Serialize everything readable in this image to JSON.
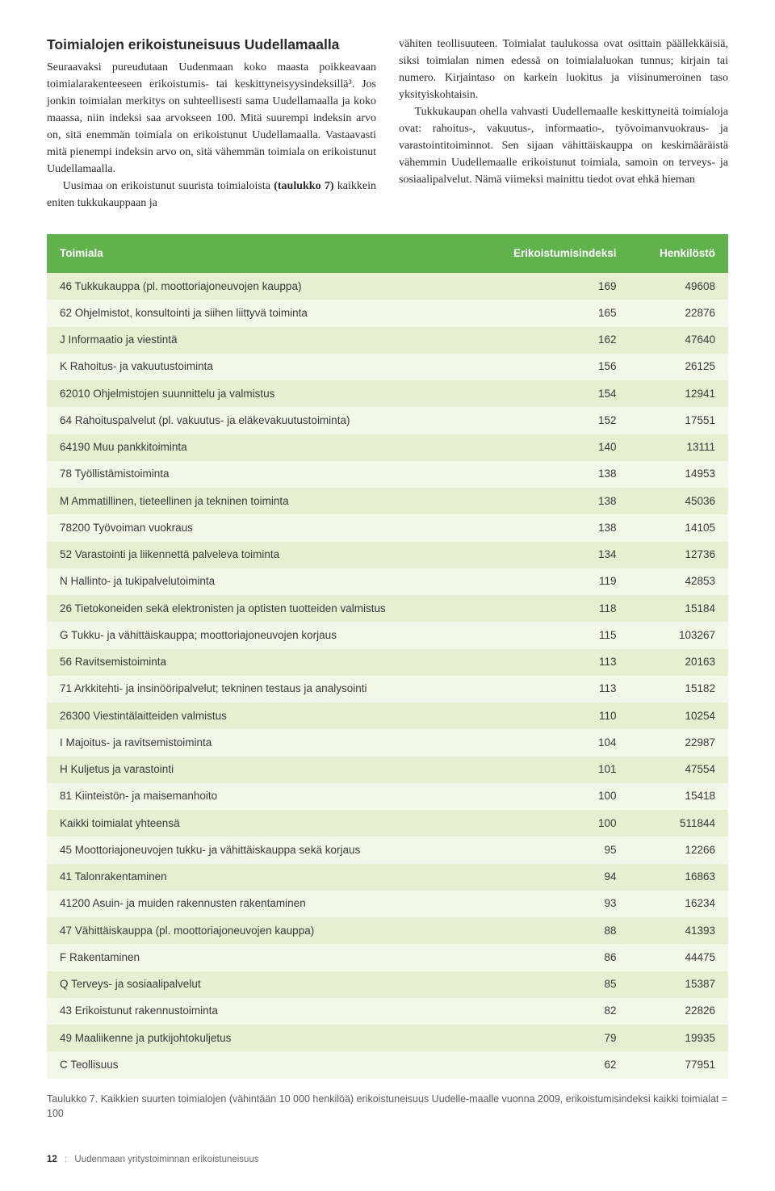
{
  "heading": "Toimialojen erikoistuneisuus Uudellamaalla",
  "left_paras": [
    "Seuraavaksi pureudutaan Uudenmaan koko maasta poikkeavaan toimialarakenteeseen erikoistumis- tai keskittyneisyysindeksillä³. Jos jonkin toimialan merkitys on suhteellisesti sama Uudellamaalla ja koko maassa, niin indeksi saa arvokseen 100. Mitä suurempi indeksin arvo on, sitä enemmän toimiala on erikoistunut Uudellamaalla. Vastaavasti mitä pienempi indeksin arvo on, sitä vähemmän toimiala on erikoistunut Uudellamaalla.",
    "Uusimaa on erikoistunut suurista toimialoista <span class=\"bold\">(taulukko 7)</span> kaikkein eniten tukkukauppaan ja"
  ],
  "right_paras": [
    "vähiten teollisuuteen. Toimialat taulukossa ovat osittain päällekkäisiä, siksi toimialan nimen edessä on toimialaluokan tunnus; kirjain tai numero. Kirjaintaso on karkein luokitus ja viisinumeroinen taso yksityiskohtaisin.",
    "Tukkukaupan ohella vahvasti Uudellemaalle keskittyneitä toimialoja ovat: rahoitus-, vakuutus-, informaatio-, työvoimanvuokraus- ja varastointitoiminnot. Sen sijaan vähittäiskauppa on keskimääräistä vähemmin Uudellemaalle erikoistunut toimiala, samoin on terveys- ja sosiaalipalvelut. Nämä viimeksi mainittu tiedot ovat ehkä hieman"
  ],
  "table": {
    "headers": {
      "c1": "Toimiala",
      "c2": "Erikoistumisindeksi",
      "c3": "Henkilöstö"
    },
    "rows": [
      [
        "46 Tukkukauppa (pl. moottoriajoneuvojen kauppa)",
        "169",
        "49608"
      ],
      [
        "62 Ohjelmistot, konsultointi ja siihen liittyvä toiminta",
        "165",
        "22876"
      ],
      [
        "J Informaatio ja viestintä",
        "162",
        "47640"
      ],
      [
        "K Rahoitus- ja vakuutustoiminta",
        "156",
        "26125"
      ],
      [
        "62010 Ohjelmistojen suunnittelu ja valmistus",
        "154",
        "12941"
      ],
      [
        "64 Rahoituspalvelut (pl. vakuutus- ja eläkevakuutustoiminta)",
        "152",
        "17551"
      ],
      [
        "64190 Muu pankkitoiminta",
        "140",
        "13111"
      ],
      [
        "78 Työllistämistoiminta",
        "138",
        "14953"
      ],
      [
        "M Ammatillinen, tieteellinen ja tekninen toiminta",
        "138",
        "45036"
      ],
      [
        "78200 Työvoiman vuokraus",
        "138",
        "14105"
      ],
      [
        "52 Varastointi ja liikennettä palveleva toiminta",
        "134",
        "12736"
      ],
      [
        "N Hallinto- ja tukipalvelutoiminta",
        "119",
        "42853"
      ],
      [
        "26 Tietokoneiden sekä elektronisten ja optisten tuotteiden valmistus",
        "118",
        "15184"
      ],
      [
        "G Tukku- ja vähittäiskauppa; moottoriajoneuvojen korjaus",
        "115",
        "103267"
      ],
      [
        "56 Ravitsemistoiminta",
        "113",
        "20163"
      ],
      [
        "71 Arkkitehti- ja insinööripalvelut; tekninen testaus ja analysointi",
        "113",
        "15182"
      ],
      [
        "26300 Viestintälaitteiden valmistus",
        "110",
        "10254"
      ],
      [
        "I Majoitus- ja ravitsemistoiminta",
        "104",
        "22987"
      ],
      [
        "H Kuljetus ja varastointi",
        "101",
        "47554"
      ],
      [
        "81 Kiinteistön- ja maisemanhoito",
        "100",
        "15418"
      ],
      [
        "Kaikki toimialat yhteensä",
        "100",
        "511844"
      ],
      [
        "45 Moottoriajoneuvojen tukku- ja vähittäiskauppa sekä korjaus",
        "95",
        "12266"
      ],
      [
        "41 Talonrakentaminen",
        "94",
        "16863"
      ],
      [
        "41200 Asuin- ja muiden rakennusten rakentaminen",
        "93",
        "16234"
      ],
      [
        "47 Vähittäiskauppa (pl. moottoriajoneuvojen kauppa)",
        "88",
        "41393"
      ],
      [
        "F Rakentaminen",
        "86",
        "44475"
      ],
      [
        "Q Terveys- ja sosiaalipalvelut",
        "85",
        "15387"
      ],
      [
        "43 Erikoistunut rakennustoiminta",
        "82",
        "22826"
      ],
      [
        "49 Maaliikenne ja putkijohtokuljetus",
        "79",
        "19935"
      ],
      [
        "C Teollisuus",
        "62",
        "77951"
      ]
    ]
  },
  "caption": "Taulukko 7. Kaikkien suurten toimialojen (vähintään 10 000 henkilöä) erikoistuneisuus Uudelle-maalle vuonna 2009, erikoistumisindeksi kaikki toimialat = 100",
  "footer": {
    "page": "12",
    "title": "Uudenmaan yritystoiminnan erikoistuneisuus"
  }
}
